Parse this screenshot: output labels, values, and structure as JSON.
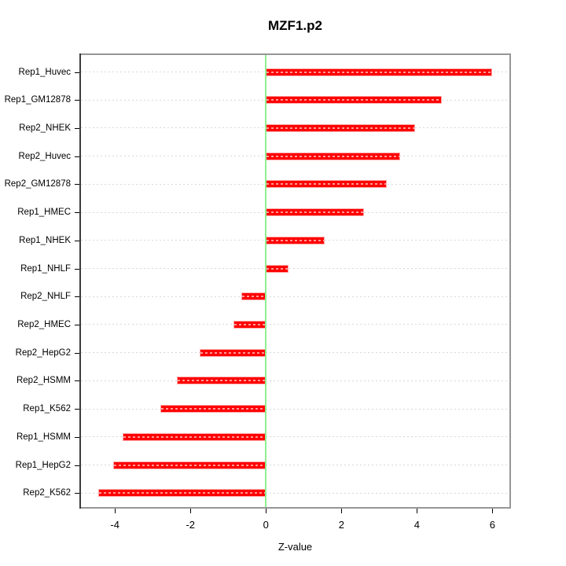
{
  "title": "MZF1.p2",
  "chart_data": {
    "type": "bar",
    "orientation": "horizontal",
    "title": "MZF1.p2",
    "xlabel": "Z-value",
    "ylabel": "",
    "order": "top-to-bottom",
    "categories": [
      "Rep1_Huvec",
      "Rep1_GM12878",
      "Rep2_NHEK",
      "Rep2_Huvec",
      "Rep2_GM12878",
      "Rep1_HMEC",
      "Rep1_NHEK",
      "Rep1_NHLF",
      "Rep2_NHLF",
      "Rep2_HMEC",
      "Rep2_HepG2",
      "Rep2_HSMM",
      "Rep1_K562",
      "Rep1_HSMM",
      "Rep1_HepG2",
      "Rep2_K562"
    ],
    "values": [
      6.0,
      4.65,
      3.95,
      3.55,
      3.2,
      2.6,
      1.55,
      0.6,
      -0.65,
      -0.85,
      -1.75,
      -2.35,
      -2.8,
      -3.8,
      -4.05,
      -4.45
    ],
    "x_ticks": [
      -4,
      -2,
      0,
      2,
      4,
      6
    ],
    "xlim": [
      -4.9,
      6.45
    ],
    "grid": "dashed horizontal line per category",
    "legend": "none",
    "zero_reference_line": 0,
    "colors": {
      "bar": "#ff0000",
      "bar_edge": "#ffaaaa",
      "bar_inner_dash": "rgba(255,255,255,0.6)",
      "zero_line": "#90ee90",
      "grid": "#d8d8d8",
      "box_border": "#969696",
      "axis_line": "#3c3c3c",
      "tick": "#000000",
      "text": "#000000",
      "background": "#ffffff"
    }
  }
}
